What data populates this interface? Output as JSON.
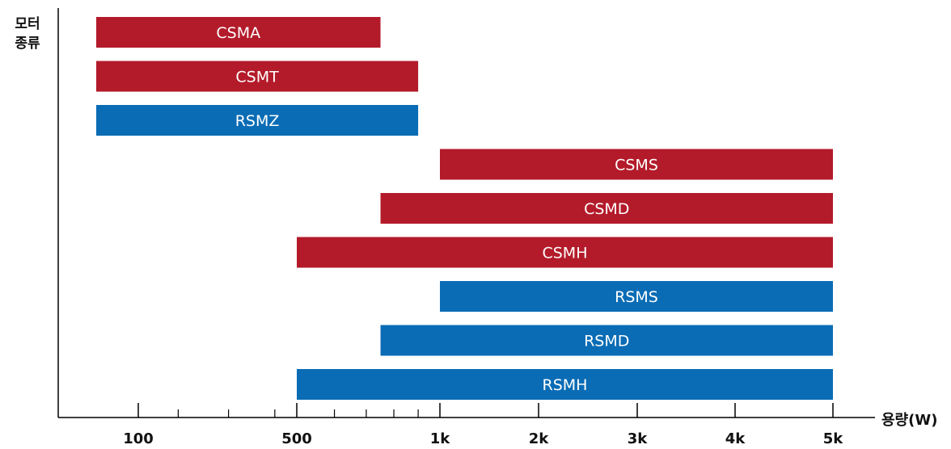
{
  "chart_data": {
    "type": "bar",
    "orientation": "horizontal-range",
    "ylabel_lines": [
      "모터",
      "종류"
    ],
    "xlabel": "용량(W)",
    "x_scale": "log",
    "xlim": [
      50,
      5000
    ],
    "tick_labels": [
      {
        "value": 100,
        "label": "100"
      },
      {
        "value": 500,
        "label": "500"
      },
      {
        "value": 1000,
        "label": "1k"
      },
      {
        "value": 2000,
        "label": "2k"
      },
      {
        "value": 3000,
        "label": "3k"
      },
      {
        "value": 4000,
        "label": "4k"
      },
      {
        "value": 5000,
        "label": "5k"
      }
    ],
    "minor_ticks": [
      150,
      250,
      400,
      600,
      700,
      800,
      900
    ],
    "colors": {
      "red": "#b31b2a",
      "blue": "#0a6cb5"
    },
    "bars": [
      {
        "label": "CSMA",
        "start": 60,
        "end": 750,
        "color": "red"
      },
      {
        "label": "CSMT",
        "start": 60,
        "end": 900,
        "color": "red"
      },
      {
        "label": "RSMZ",
        "start": 60,
        "end": 900,
        "color": "blue"
      },
      {
        "label": "CSMS",
        "start": 1000,
        "end": 5000,
        "color": "red"
      },
      {
        "label": "CSMD",
        "start": 750,
        "end": 5000,
        "color": "red"
      },
      {
        "label": "CSMH",
        "start": 500,
        "end": 5000,
        "color": "red"
      },
      {
        "label": "RSMS",
        "start": 1000,
        "end": 5000,
        "color": "blue"
      },
      {
        "label": "RSMD",
        "start": 750,
        "end": 5000,
        "color": "blue"
      },
      {
        "label": "RSMH",
        "start": 500,
        "end": 5000,
        "color": "blue"
      }
    ]
  }
}
